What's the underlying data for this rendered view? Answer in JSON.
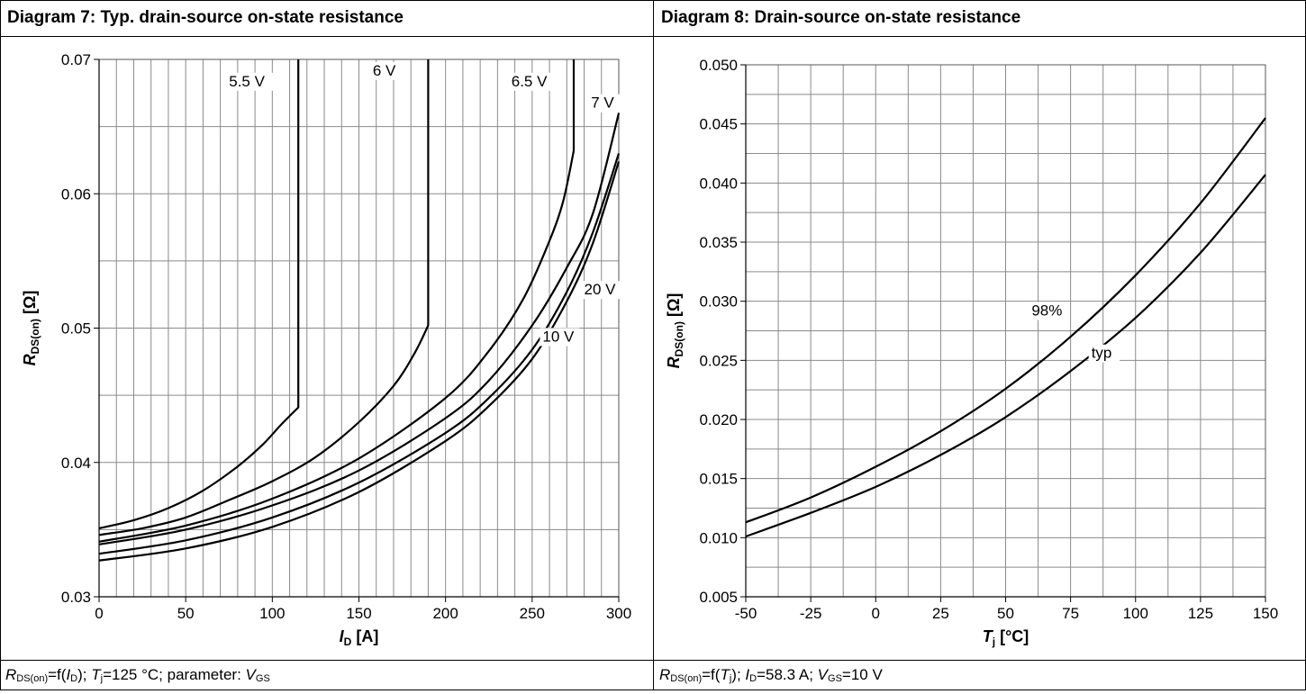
{
  "panels": [
    {
      "title": "Diagram 7: Typ. drain-source on-state resistance",
      "caption": {
        "parts": [
          {
            "t": "R",
            "s": "i"
          },
          {
            "t": "DS(on)",
            "s": "sub"
          },
          {
            "t": "=f(",
            "s": ""
          },
          {
            "t": "I",
            "s": "i"
          },
          {
            "t": "D",
            "s": "sub"
          },
          {
            "t": "); ",
            "s": ""
          },
          {
            "t": "T",
            "s": "i"
          },
          {
            "t": "j",
            "s": "sub"
          },
          {
            "t": "=125 °C; parameter: ",
            "s": ""
          },
          {
            "t": "V",
            "s": "i"
          },
          {
            "t": "GS",
            "s": "sub"
          }
        ]
      }
    },
    {
      "title": "Diagram 8: Drain-source on-state resistance",
      "caption": {
        "parts": [
          {
            "t": "R",
            "s": "i"
          },
          {
            "t": "DS(on)",
            "s": "sub"
          },
          {
            "t": "=f(",
            "s": ""
          },
          {
            "t": "T",
            "s": "i"
          },
          {
            "t": "j",
            "s": "sub"
          },
          {
            "t": "); ",
            "s": ""
          },
          {
            "t": "I",
            "s": "i"
          },
          {
            "t": "D",
            "s": "sub"
          },
          {
            "t": "=58.3 A; ",
            "s": ""
          },
          {
            "t": "V",
            "s": "i"
          },
          {
            "t": "GS",
            "s": "sub"
          },
          {
            "t": "=10 V",
            "s": ""
          }
        ]
      }
    }
  ],
  "chart_data": [
    {
      "type": "line",
      "xlabel": {
        "main": "I",
        "sub": "D",
        "unit": " [A]"
      },
      "ylabel": {
        "main": "R",
        "sub": "DS(on)",
        "unit": " [Ω]"
      },
      "xlim": [
        0,
        300
      ],
      "ylim": [
        0.03,
        0.07
      ],
      "xticks": [
        0,
        50,
        100,
        150,
        200,
        250,
        300
      ],
      "yticks": [
        0.03,
        0.04,
        0.05,
        0.06,
        0.07
      ],
      "ytick_labels": [
        "0.03",
        "0.04",
        "0.05",
        "0.06",
        "0.07"
      ],
      "x_minor_step": 10,
      "y_minor_step": 0.005,
      "grid": true,
      "series": [
        {
          "name": "5.5 V",
          "label_at": [
            75,
            0.068
          ],
          "points": [
            [
              0,
              0.0351
            ],
            [
              20,
              0.0357
            ],
            [
              40,
              0.0366
            ],
            [
              60,
              0.0379
            ],
            [
              80,
              0.0397
            ],
            [
              95,
              0.0414
            ],
            [
              105,
              0.0428
            ],
            [
              115,
              0.0441
            ],
            [
              115,
              0.05
            ],
            [
              115,
              0.06
            ],
            [
              115,
              0.07
            ]
          ]
        },
        {
          "name": "6 V",
          "label_at": [
            158,
            0.0688
          ],
          "points": [
            [
              0,
              0.0346
            ],
            [
              25,
              0.0351
            ],
            [
              50,
              0.0359
            ],
            [
              75,
              0.0372
            ],
            [
              100,
              0.0386
            ],
            [
              125,
              0.0404
            ],
            [
              150,
              0.043
            ],
            [
              170,
              0.0457
            ],
            [
              182,
              0.0481
            ],
            [
              190,
              0.0502
            ],
            [
              190,
              0.06
            ],
            [
              190,
              0.07
            ]
          ]
        },
        {
          "name": "6.5 V",
          "label_at": [
            238,
            0.068
          ],
          "points": [
            [
              0,
              0.0341
            ],
            [
              50,
              0.0353
            ],
            [
              100,
              0.0373
            ],
            [
              150,
              0.0403
            ],
            [
              200,
              0.0448
            ],
            [
              225,
              0.0483
            ],
            [
              245,
              0.0522
            ],
            [
              260,
              0.0565
            ],
            [
              268,
              0.0595
            ],
            [
              274,
              0.0632
            ],
            [
              274,
              0.07
            ]
          ]
        },
        {
          "name": "7 V",
          "label_at": [
            284,
            0.0664
          ],
          "points": [
            [
              0,
              0.0339
            ],
            [
              50,
              0.035
            ],
            [
              100,
              0.0368
            ],
            [
              150,
              0.0394
            ],
            [
              200,
              0.0433
            ],
            [
              225,
              0.0461
            ],
            [
              250,
              0.0502
            ],
            [
              270,
              0.0545
            ],
            [
              285,
              0.0585
            ],
            [
              300,
              0.066
            ]
          ]
        },
        {
          "name": "20 V",
          "label_at": [
            280,
            0.0525
          ],
          "points": [
            [
              0,
              0.0332
            ],
            [
              50,
              0.0342
            ],
            [
              100,
              0.0359
            ],
            [
              150,
              0.0385
            ],
            [
              200,
              0.0422
            ],
            [
              225,
              0.0448
            ],
            [
              250,
              0.0484
            ],
            [
              270,
              0.0527
            ],
            [
              285,
              0.0571
            ],
            [
              300,
              0.063
            ]
          ]
        },
        {
          "name": "10 V",
          "label_at": [
            256,
            0.049
          ],
          "points": [
            [
              0,
              0.0327
            ],
            [
              50,
              0.0336
            ],
            [
              100,
              0.0352
            ],
            [
              150,
              0.0378
            ],
            [
              200,
              0.0416
            ],
            [
              225,
              0.0442
            ],
            [
              250,
              0.0477
            ],
            [
              270,
              0.052
            ],
            [
              285,
              0.0563
            ],
            [
              300,
              0.0624
            ]
          ]
        }
      ]
    },
    {
      "type": "line",
      "xlabel": {
        "main": "T",
        "sub": "j",
        "unit": " [°C]"
      },
      "ylabel": {
        "main": "R",
        "sub": "DS(on)",
        "unit": " [Ω]"
      },
      "xlim": [
        -50,
        150
      ],
      "ylim": [
        0.005,
        0.05
      ],
      "xticks": [
        -50,
        -25,
        0,
        25,
        50,
        75,
        100,
        125,
        150
      ],
      "yticks": [
        0.005,
        0.01,
        0.015,
        0.02,
        0.025,
        0.03,
        0.035,
        0.04,
        0.045,
        0.05
      ],
      "ytick_labels": [
        "0.005",
        "0.010",
        "0.015",
        "0.020",
        "0.025",
        "0.030",
        "0.035",
        "0.040",
        "0.045",
        "0.050"
      ],
      "x_minor_step": 12.5,
      "y_minor_step": 0.0025,
      "grid": true,
      "series": [
        {
          "name": "98%",
          "label_at": [
            60,
            0.0288
          ],
          "points": [
            [
              -50,
              0.0113
            ],
            [
              -25,
              0.0134
            ],
            [
              0,
              0.016
            ],
            [
              25,
              0.019
            ],
            [
              50,
              0.0226
            ],
            [
              75,
              0.027
            ],
            [
              100,
              0.0322
            ],
            [
              125,
              0.0383
            ],
            [
              150,
              0.0455
            ]
          ]
        },
        {
          "name": "typ",
          "label_at": [
            83,
            0.0252
          ],
          "points": [
            [
              -50,
              0.0101
            ],
            [
              -25,
              0.0121
            ],
            [
              0,
              0.0143
            ],
            [
              25,
              0.017
            ],
            [
              50,
              0.0202
            ],
            [
              75,
              0.0241
            ],
            [
              100,
              0.0286
            ],
            [
              125,
              0.0341
            ],
            [
              150,
              0.0407
            ]
          ]
        }
      ]
    }
  ]
}
